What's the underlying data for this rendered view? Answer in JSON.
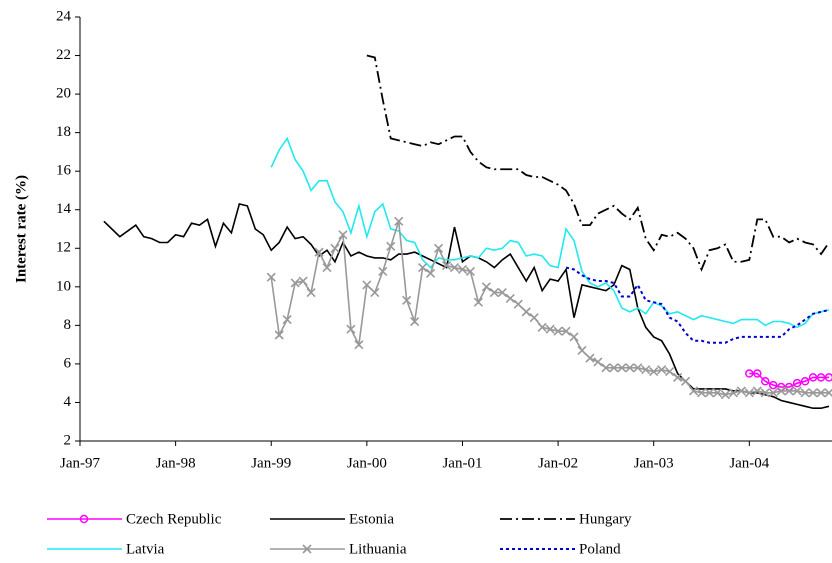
{
  "chart_data": {
    "type": "line",
    "y_label": "Interest rate (%)",
    "x": [
      "1997-04",
      "1997-05",
      "1997-06",
      "1997-07",
      "1997-08",
      "1997-09",
      "1997-10",
      "1997-11",
      "1997-12",
      "1998-01",
      "1998-02",
      "1998-03",
      "1998-04",
      "1998-05",
      "1998-06",
      "1998-07",
      "1998-08",
      "1998-09",
      "1998-10",
      "1998-11",
      "1998-12",
      "1999-01",
      "1999-02",
      "1999-03",
      "1999-04",
      "1999-05",
      "1999-06",
      "1999-07",
      "1999-08",
      "1999-09",
      "1999-10",
      "1999-11",
      "1999-12",
      "2000-01",
      "2000-02",
      "2000-03",
      "2000-04",
      "2000-05",
      "2000-06",
      "2000-07",
      "2000-08",
      "2000-09",
      "2000-10",
      "2000-11",
      "2000-12",
      "2001-01",
      "2001-02",
      "2001-03",
      "2001-04",
      "2001-05",
      "2001-06",
      "2001-07",
      "2001-08",
      "2001-09",
      "2001-10",
      "2001-11",
      "2001-12",
      "2002-01",
      "2002-02",
      "2002-03",
      "2002-04",
      "2002-05",
      "2002-06",
      "2002-07",
      "2002-08",
      "2002-09",
      "2002-10",
      "2002-11",
      "2002-12",
      "2003-01",
      "2003-02",
      "2003-03",
      "2003-04",
      "2003-05",
      "2003-06",
      "2003-07",
      "2003-08",
      "2003-09",
      "2003-10",
      "2003-11",
      "2003-12",
      "2004-01",
      "2004-02",
      "2004-03",
      "2004-04",
      "2004-05",
      "2004-06",
      "2004-07",
      "2004-08",
      "2004-09",
      "2004-10",
      "2004-11"
    ],
    "xlim": [
      "1997-01",
      "2004-11"
    ],
    "xticks": [
      {
        "value": "1997-01",
        "label": "Jan-97"
      },
      {
        "value": "1998-01",
        "label": "Jan-98"
      },
      {
        "value": "1999-01",
        "label": "Jan-99"
      },
      {
        "value": "2000-01",
        "label": "Jan-00"
      },
      {
        "value": "2001-01",
        "label": "Jan-01"
      },
      {
        "value": "2002-01",
        "label": "Jan-02"
      },
      {
        "value": "2003-01",
        "label": "Jan-03"
      },
      {
        "value": "2004-01",
        "label": "Jan-04"
      }
    ],
    "ylim": [
      2,
      24
    ],
    "yticks": [
      2,
      4,
      6,
      8,
      10,
      12,
      14,
      16,
      18,
      20,
      22,
      24
    ],
    "grid": false,
    "legend": "bottom",
    "series": [
      {
        "name": "Czech Republic",
        "color": "#ff00ff",
        "style": "solid",
        "marker": "circle",
        "values": [
          null,
          null,
          null,
          null,
          null,
          null,
          null,
          null,
          null,
          null,
          null,
          null,
          null,
          null,
          null,
          null,
          null,
          null,
          null,
          null,
          null,
          null,
          null,
          null,
          null,
          null,
          null,
          null,
          null,
          null,
          null,
          null,
          null,
          null,
          null,
          null,
          null,
          null,
          null,
          null,
          null,
          null,
          null,
          null,
          null,
          null,
          null,
          null,
          null,
          null,
          null,
          null,
          null,
          null,
          null,
          null,
          null,
          null,
          null,
          null,
          null,
          null,
          null,
          null,
          null,
          null,
          null,
          null,
          null,
          null,
          null,
          null,
          null,
          null,
          null,
          null,
          null,
          null,
          null,
          null,
          null,
          5.5,
          5.5,
          5.1,
          4.9,
          4.8,
          4.8,
          5.0,
          5.1,
          5.3,
          5.3,
          5.3
        ]
      },
      {
        "name": "Estonia",
        "color": "#000000",
        "style": "solid",
        "marker": "none",
        "values": [
          13.4,
          13.0,
          12.6,
          12.9,
          13.2,
          12.6,
          12.5,
          12.3,
          12.3,
          12.7,
          12.6,
          13.3,
          13.2,
          13.5,
          12.1,
          13.3,
          12.8,
          14.3,
          14.2,
          13.0,
          12.7,
          11.9,
          12.3,
          13.1,
          12.5,
          12.6,
          12.2,
          11.6,
          11.9,
          11.3,
          12.3,
          11.6,
          11.8,
          11.6,
          11.5,
          11.5,
          11.4,
          11.7,
          11.7,
          11.8,
          11.6,
          11.4,
          11.2,
          11.0,
          13.1,
          11.3,
          11.6,
          11.5,
          11.3,
          11.0,
          11.4,
          11.7,
          11.0,
          10.3,
          11.0,
          9.8,
          10.4,
          10.3,
          10.9,
          8.4,
          10.1,
          10.0,
          9.9,
          9.8,
          10.1,
          11.1,
          10.9,
          8.9,
          7.9,
          7.4,
          7.2,
          6.5,
          5.5,
          5.1,
          4.7,
          4.7,
          4.7,
          4.7,
          4.7,
          4.6,
          4.6,
          4.5,
          4.5,
          4.4,
          4.3,
          4.1,
          4.0,
          3.9,
          3.8,
          3.7,
          3.7,
          3.8
        ]
      },
      {
        "name": "Hungary",
        "color": "#000000",
        "style": "dashdot",
        "marker": "none",
        "values": [
          null,
          null,
          null,
          null,
          null,
          null,
          null,
          null,
          null,
          null,
          null,
          null,
          null,
          null,
          null,
          null,
          null,
          null,
          null,
          null,
          null,
          null,
          null,
          null,
          null,
          null,
          null,
          null,
          null,
          null,
          null,
          null,
          null,
          22.0,
          21.9,
          19.7,
          17.7,
          17.6,
          17.5,
          17.4,
          17.3,
          17.5,
          17.4,
          17.6,
          17.8,
          17.8,
          17.0,
          16.5,
          16.2,
          16.1,
          16.1,
          16.1,
          16.1,
          15.8,
          15.7,
          15.7,
          15.5,
          15.3,
          15.0,
          14.3,
          13.2,
          13.2,
          13.8,
          14.0,
          14.2,
          13.8,
          13.5,
          14.1,
          12.5,
          11.9,
          12.7,
          12.6,
          12.8,
          12.5,
          12.0,
          10.9,
          11.9,
          12.0,
          12.2,
          11.3,
          11.3,
          11.4,
          13.5,
          13.5,
          12.6,
          12.6,
          12.3,
          12.5,
          12.3,
          12.2,
          11.7,
          12.3
        ]
      },
      {
        "name": "Latvia",
        "color": "#22e8f0",
        "style": "solid",
        "marker": "none",
        "values": [
          null,
          null,
          null,
          null,
          null,
          null,
          null,
          null,
          null,
          null,
          null,
          null,
          null,
          null,
          null,
          null,
          null,
          null,
          null,
          null,
          null,
          16.2,
          17.1,
          17.7,
          16.6,
          16.0,
          15.0,
          15.5,
          15.5,
          14.4,
          13.9,
          12.8,
          14.2,
          12.6,
          13.9,
          14.3,
          13.0,
          12.9,
          12.4,
          12.3,
          11.4,
          11.0,
          11.5,
          11.4,
          11.4,
          11.5,
          11.6,
          11.5,
          12.0,
          11.9,
          12.0,
          12.4,
          12.3,
          11.6,
          11.7,
          11.6,
          11.1,
          11.0,
          13.0,
          12.4,
          10.8,
          10.2,
          10.0,
          10.2,
          9.8,
          8.9,
          8.7,
          8.9,
          8.6,
          9.2,
          9.0,
          8.6,
          8.7,
          8.5,
          8.3,
          8.5,
          8.4,
          8.3,
          8.2,
          8.1,
          8.3,
          8.3,
          8.3,
          8.0,
          8.2,
          8.2,
          8.1,
          7.9,
          8.1,
          8.6,
          8.7,
          8.8
        ]
      },
      {
        "name": "Lithuania",
        "color": "#999999",
        "style": "solid",
        "marker": "x",
        "values": [
          null,
          null,
          null,
          null,
          null,
          null,
          null,
          null,
          null,
          null,
          null,
          null,
          null,
          null,
          null,
          null,
          null,
          null,
          null,
          null,
          null,
          10.5,
          7.5,
          8.3,
          10.2,
          10.3,
          9.7,
          11.8,
          11.0,
          12.0,
          12.7,
          7.8,
          7.0,
          10.1,
          9.7,
          10.8,
          12.1,
          13.4,
          9.3,
          8.2,
          11.0,
          10.7,
          12.0,
          11.1,
          11.0,
          10.9,
          10.8,
          9.2,
          10.0,
          9.7,
          9.7,
          9.4,
          9.1,
          8.7,
          8.4,
          7.9,
          7.8,
          7.7,
          7.7,
          7.4,
          6.7,
          6.3,
          6.1,
          5.8,
          5.8,
          5.8,
          5.8,
          5.8,
          5.7,
          5.6,
          5.7,
          5.6,
          5.3,
          5.1,
          4.6,
          4.5,
          4.5,
          4.5,
          4.4,
          4.5,
          4.6,
          4.5,
          4.6,
          4.5,
          4.5,
          4.6,
          4.6,
          4.6,
          4.5,
          4.5,
          4.5,
          4.5
        ]
      },
      {
        "name": "Poland",
        "color": "#0000cc",
        "style": "dotted",
        "marker": "none",
        "values": [
          null,
          null,
          null,
          null,
          null,
          null,
          null,
          null,
          null,
          null,
          null,
          null,
          null,
          null,
          null,
          null,
          null,
          null,
          null,
          null,
          null,
          null,
          null,
          null,
          null,
          null,
          null,
          null,
          null,
          null,
          null,
          null,
          null,
          null,
          null,
          null,
          null,
          null,
          null,
          null,
          null,
          null,
          null,
          null,
          null,
          null,
          null,
          null,
          null,
          null,
          null,
          null,
          null,
          null,
          null,
          null,
          null,
          null,
          11.0,
          10.9,
          10.6,
          10.4,
          10.3,
          10.3,
          10.2,
          9.5,
          9.5,
          10.1,
          9.3,
          9.2,
          9.1,
          8.4,
          8.2,
          7.6,
          7.2,
          7.2,
          7.1,
          7.1,
          7.1,
          7.3,
          7.4,
          7.4,
          7.4,
          7.4,
          7.4,
          7.4,
          7.8,
          8.0,
          8.3,
          8.6,
          8.7,
          8.8
        ]
      }
    ]
  }
}
